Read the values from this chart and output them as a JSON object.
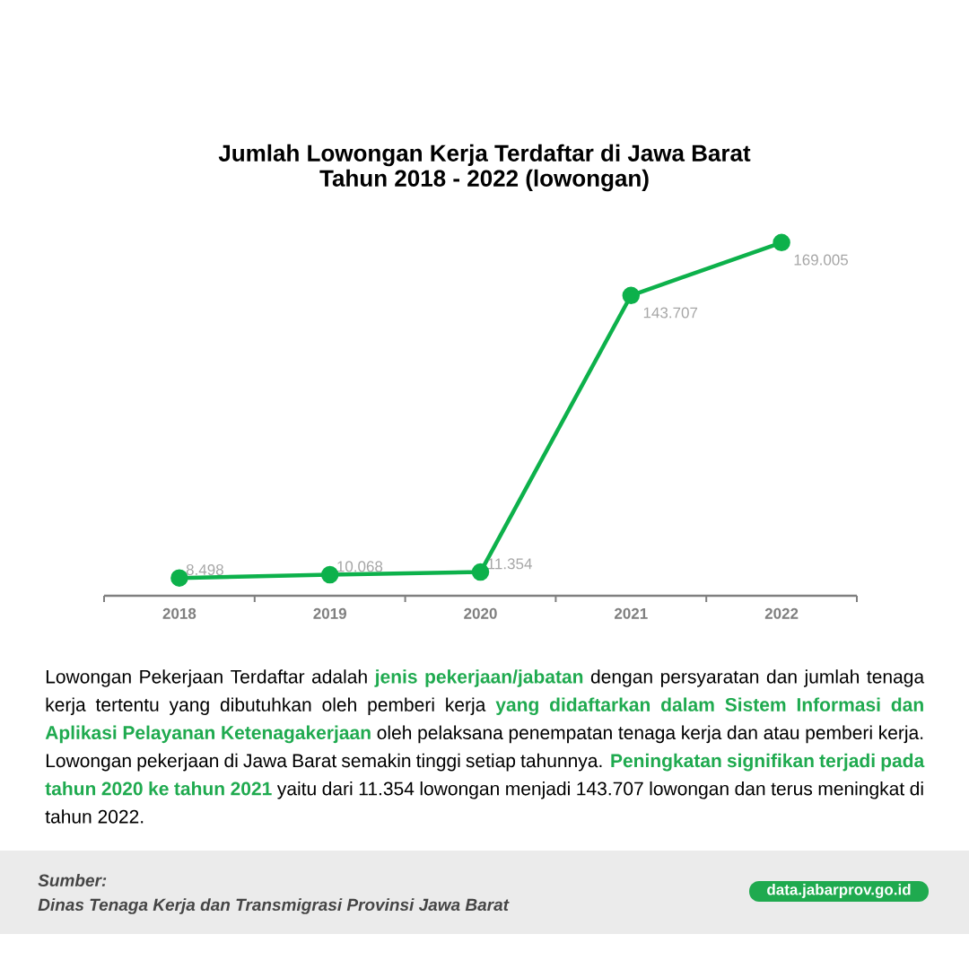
{
  "chart_data": {
    "type": "line",
    "title": "Jumlah Lowongan Kerja Terdaftar di Jawa Barat",
    "subtitle": "Tahun 2018 - 2022 (lowongan)",
    "categories": [
      "2018",
      "2019",
      "2020",
      "2021",
      "2022"
    ],
    "values": [
      8498,
      10068,
      11354,
      143707,
      169005
    ],
    "color": "#0db14b",
    "value_labels": [
      "8.498",
      "10.068",
      "11.354",
      "143.707",
      "169.005"
    ],
    "marker": "circle",
    "line_style": "solid",
    "tick_labels": "x",
    "annotations": [
      "Lowongan Pekerjaan Terdaftar adalah **jenis pekerjaan/jabatan** dengan persyaratan dan jumlah tenaga kerja tertentu yang dibutuhkan oleh pemberi kerja **yang didaftarkan dalam Sistem Informasi dan Aplikasi Pelayanan Ketenagakerjaan** oleh pelaksana penempatan tenaga kerja dan atau pemberi kerja. Lowongan pekerjaan di Jawa Barat semakin tinggi setiap tahunnya. **Peningkatan signifikan terjadi pada tahun 2020 ke tahun 2021** yaitu dari 11.354 lowongan menjadi 143.707 lowongan dan terus meningkat di tahun 2022.",
      "Sumber:",
      "Dinas Tenaga Kerja dan Transmigrasi Provinsi Jawa Barat",
      "data.jabarprov.go.id"
    ]
  }
}
